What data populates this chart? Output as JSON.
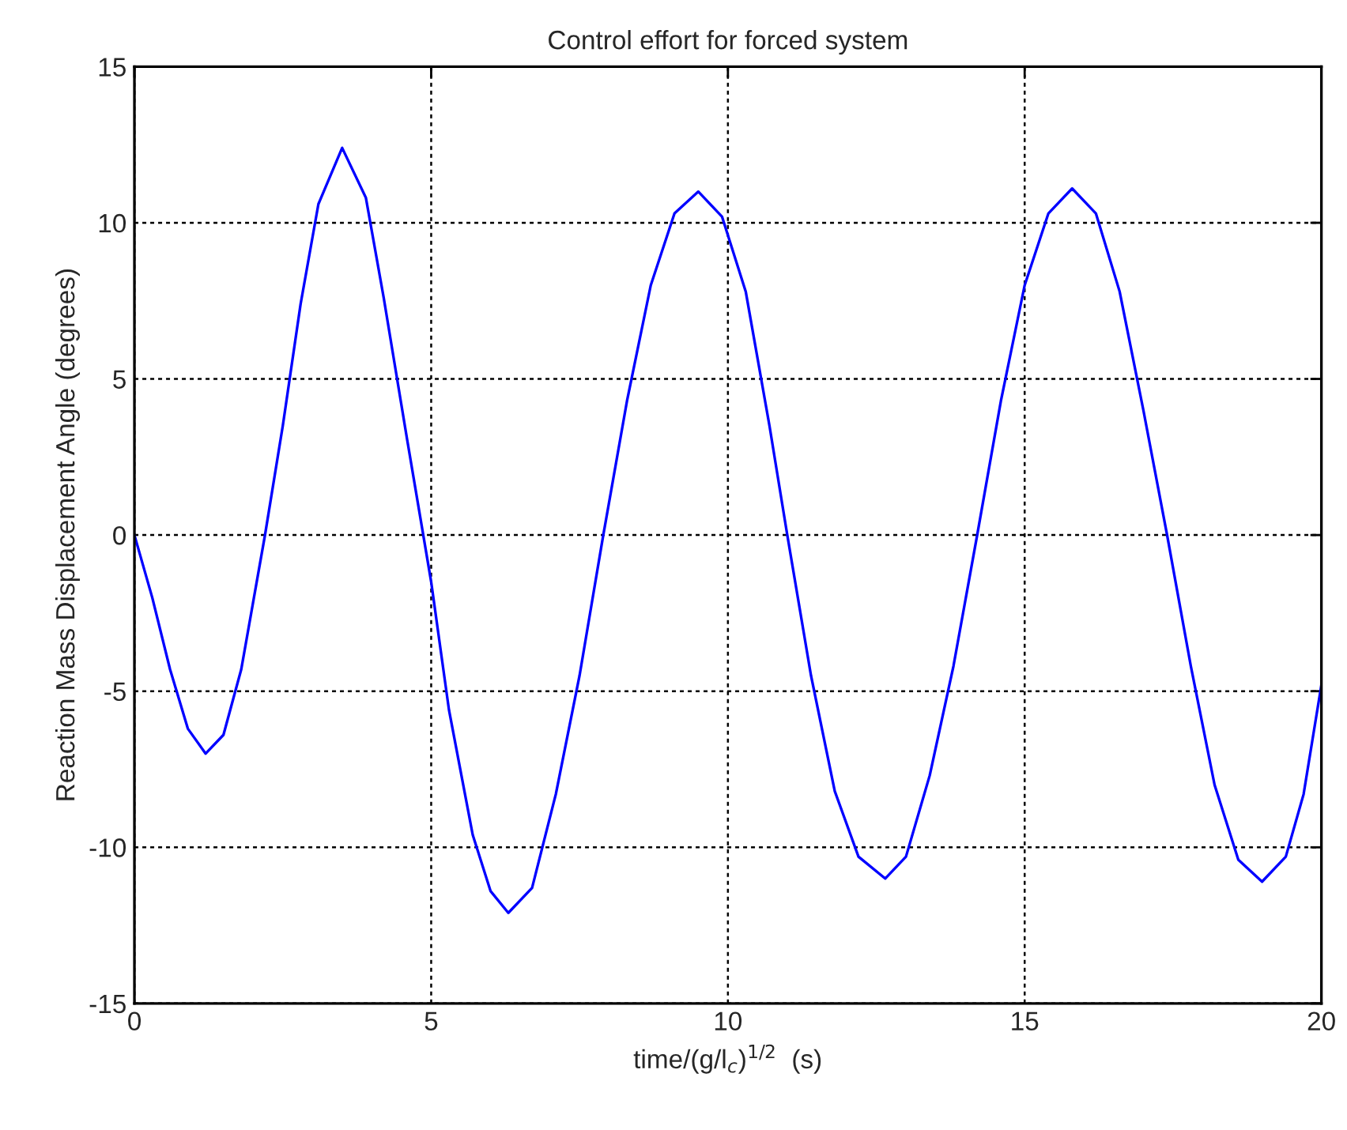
{
  "chart_data": {
    "type": "line",
    "title": "Control effort for forced system",
    "xlabel": "time/(g/l$_{c}$)$^{1/2}$  (s)",
    "ylabel": "Reaction Mass Displacement Angle (degrees)",
    "xlim": [
      0,
      20
    ],
    "ylim": [
      -15,
      15
    ],
    "xticks": [
      0,
      5,
      10,
      15,
      20
    ],
    "yticks": [
      -15,
      -10,
      -5,
      0,
      5,
      10,
      15
    ],
    "grid": true,
    "line_style": "solid",
    "marker": "none",
    "series": [
      {
        "color": "#0000ff",
        "x": [
          0,
          0.3,
          0.6,
          0.9,
          1.2,
          1.5,
          1.8,
          2.2,
          2.5,
          2.8,
          3.1,
          3.5,
          3.9,
          4.2,
          4.6,
          5.0,
          5.3,
          5.7,
          6.0,
          6.3,
          6.7,
          7.1,
          7.5,
          7.9,
          8.3,
          8.7,
          9.1,
          9.5,
          9.9,
          10.3,
          10.7,
          11.0,
          11.4,
          11.8,
          12.2,
          12.65,
          13.0,
          13.4,
          13.8,
          14.2,
          14.6,
          15.0,
          15.4,
          15.8,
          16.2,
          16.6,
          17.0,
          17.4,
          17.8,
          18.2,
          18.6,
          19.0,
          19.4,
          19.7,
          20
        ],
        "values": [
          0,
          -2.0,
          -4.3,
          -6.2,
          -7.0,
          -6.4,
          -4.3,
          0,
          3.5,
          7.4,
          10.6,
          12.4,
          10.8,
          7.6,
          3.0,
          -1.5,
          -5.6,
          -9.6,
          -11.4,
          -12.1,
          -11.3,
          -8.3,
          -4.5,
          0,
          4.3,
          8.0,
          10.3,
          11.0,
          10.2,
          7.8,
          3.5,
          0,
          -4.5,
          -8.2,
          -10.3,
          -11.0,
          -10.3,
          -7.7,
          -4.2,
          0,
          4.3,
          8.0,
          10.3,
          11.1,
          10.3,
          7.8,
          4.0,
          0,
          -4.2,
          -8.0,
          -10.4,
          -11.1,
          -10.3,
          -8.3,
          -4.8
        ]
      }
    ]
  }
}
